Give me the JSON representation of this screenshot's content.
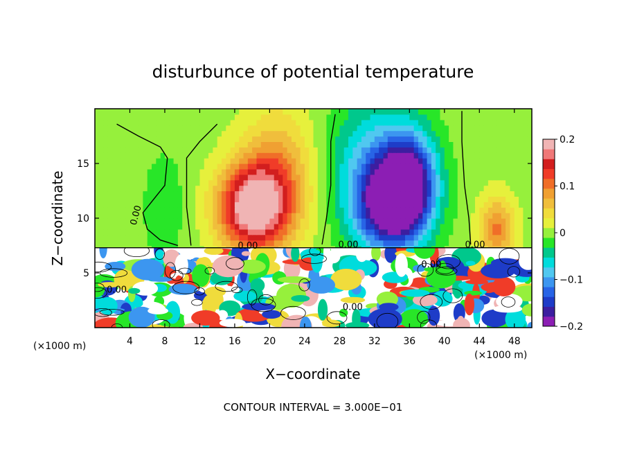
{
  "chart_data": {
    "type": "heatmap",
    "title": "disturbunce of potential temperature",
    "xlabel": "X−coordinate",
    "ylabel": "Z−coordinate",
    "x_unit_left": "(×1000 m)",
    "x_unit_right": "(×1000 m)",
    "xlim": [
      0,
      50
    ],
    "ylim": [
      0,
      20
    ],
    "x_ticks": [
      4,
      8,
      12,
      16,
      20,
      24,
      28,
      32,
      36,
      40,
      44,
      48
    ],
    "y_ticks": [
      5,
      10,
      15
    ],
    "colorbar": {
      "range": [
        -0.2,
        0.2
      ],
      "tick_values": [
        0.2,
        0.1,
        0,
        -0.1,
        -0.2
      ],
      "tick_labels": [
        "0.2",
        "0.1",
        "0",
        "−0.1",
        "−0.2"
      ]
    },
    "contour_interval_text": "CONTOUR INTERVAL = 3.000E−01",
    "contour_labels": [
      {
        "text": "0.00",
        "x": 5,
        "z": 10.2
      },
      {
        "text": "0.00",
        "x": 17.5,
        "z": 7.2
      },
      {
        "text": "0.00",
        "x": 29,
        "z": 7.3
      },
      {
        "text": "0.00",
        "x": 43.5,
        "z": 7.3
      },
      {
        "text": "0.00",
        "x": 2.5,
        "z": 3.2
      },
      {
        "text": "0.00",
        "x": 29.5,
        "z": 1.6
      },
      {
        "text": "0.00",
        "x": 38.5,
        "z": 5.5
      }
    ],
    "field_features": [
      {
        "x": 18,
        "z": 11,
        "value": 0.2,
        "sx": 4,
        "sz": 4
      },
      {
        "x": 21,
        "z": 14,
        "value": 0.08,
        "sx": 4,
        "sz": 6
      },
      {
        "x": 34,
        "z": 11,
        "value": -0.2,
        "sx": 4,
        "sz": 4
      },
      {
        "x": 36,
        "z": 14,
        "value": -0.14,
        "sx": 3,
        "sz": 4
      },
      {
        "x": 32,
        "z": 15,
        "value": -0.08,
        "sx": 5,
        "sz": 6
      },
      {
        "x": 46,
        "z": 9,
        "value": 0.1,
        "sx": 2,
        "sz": 3
      },
      {
        "x": 8,
        "z": 11,
        "value": -0.02,
        "sx": 3,
        "sz": 6
      }
    ]
  }
}
